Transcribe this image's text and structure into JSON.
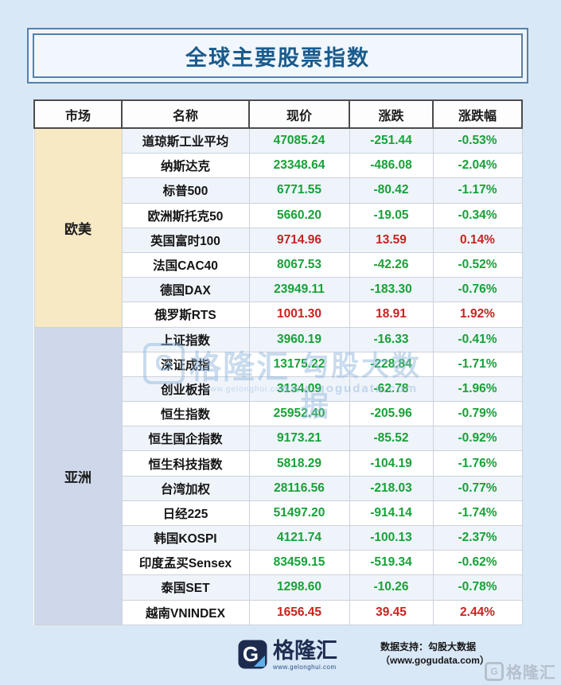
{
  "title": "全球主要股票指数",
  "colors": {
    "page_bg": "#d9e8f7",
    "title_text": "#1a5b8d",
    "title_border": "#5581aa",
    "header_border": "#4c4c4c",
    "row_stripe": "#eff4fb",
    "up_red": "#c62420",
    "down_green": "#17a238",
    "europe_america_bg": "#f6e9c4",
    "asia_bg": "#ced8ea"
  },
  "chart_data": {
    "type": "table",
    "title": "全球主要股票指数",
    "columns": [
      "市场",
      "名称",
      "现价",
      "涨跌",
      "涨跌幅"
    ],
    "groups": [
      {
        "market": "欧美",
        "bg": "#f6e9c4",
        "rows": [
          {
            "name": "道琼斯工业平均",
            "price": "47085.24",
            "change": "-251.44",
            "pct": "-0.53%",
            "trend": "down"
          },
          {
            "name": "纳斯达克",
            "price": "23348.64",
            "change": "-486.08",
            "pct": "-2.04%",
            "trend": "down"
          },
          {
            "name": "标普500",
            "price": "6771.55",
            "change": "-80.42",
            "pct": "-1.17%",
            "trend": "down"
          },
          {
            "name": "欧洲斯托克50",
            "price": "5660.20",
            "change": "-19.05",
            "pct": "-0.34%",
            "trend": "down"
          },
          {
            "name": "英国富时100",
            "price": "9714.96",
            "change": "13.59",
            "pct": "0.14%",
            "trend": "up"
          },
          {
            "name": "法国CAC40",
            "price": "8067.53",
            "change": "-42.26",
            "pct": "-0.52%",
            "trend": "down"
          },
          {
            "name": "德国DAX",
            "price": "23949.11",
            "change": "-183.30",
            "pct": "-0.76%",
            "trend": "down"
          },
          {
            "name": "俄罗斯RTS",
            "price": "1001.30",
            "change": "18.91",
            "pct": "1.92%",
            "trend": "up"
          }
        ]
      },
      {
        "market": "亚洲",
        "bg": "#ced8ea",
        "rows": [
          {
            "name": "上证指数",
            "price": "3960.19",
            "change": "-16.33",
            "pct": "-0.41%",
            "trend": "down"
          },
          {
            "name": "深证成指",
            "price": "13175.22",
            "change": "-228.84",
            "pct": "-1.71%",
            "trend": "down"
          },
          {
            "name": "创业板指",
            "price": "3134.09",
            "change": "-62.78",
            "pct": "-1.96%",
            "trend": "down"
          },
          {
            "name": "恒生指数",
            "price": "25952.40",
            "change": "-205.96",
            "pct": "-0.79%",
            "trend": "down"
          },
          {
            "name": "恒生国企指数",
            "price": "9173.21",
            "change": "-85.52",
            "pct": "-0.92%",
            "trend": "down"
          },
          {
            "name": "恒生科技指数",
            "price": "5818.29",
            "change": "-104.19",
            "pct": "-1.76%",
            "trend": "down"
          },
          {
            "name": "台湾加权",
            "price": "28116.56",
            "change": "-218.03",
            "pct": "-0.77%",
            "trend": "down"
          },
          {
            "name": "日经225",
            "price": "51497.20",
            "change": "-914.14",
            "pct": "-1.74%",
            "trend": "down"
          },
          {
            "name": "韩国KOSPI",
            "price": "4121.74",
            "change": "-100.13",
            "pct": "-2.37%",
            "trend": "down"
          },
          {
            "name": "印度孟买Sensex",
            "price": "83459.15",
            "change": "-519.34",
            "pct": "-0.62%",
            "trend": "down"
          },
          {
            "name": "泰国SET",
            "price": "1298.60",
            "change": "-10.26",
            "pct": "-0.78%",
            "trend": "down"
          },
          {
            "name": "越南VNINDEX",
            "price": "1656.45",
            "change": "39.45",
            "pct": "2.44%",
            "trend": "up"
          }
        ]
      }
    ]
  },
  "watermark_center": {
    "logo_letter": "G",
    "brand": "格隆汇",
    "brand_url": "www.gelonghui.com",
    "partner": "勾股大数据",
    "partner_url": "www.gogudata.com"
  },
  "footer": {
    "logo_letter": "G",
    "logo_text": "格隆汇",
    "logo_url": "www.gelonghui.com",
    "support_text": "数据支持：勾股大数据（www.gogudata.com）",
    "corner_watermark_letter": "G",
    "corner_watermark": "格隆汇"
  }
}
